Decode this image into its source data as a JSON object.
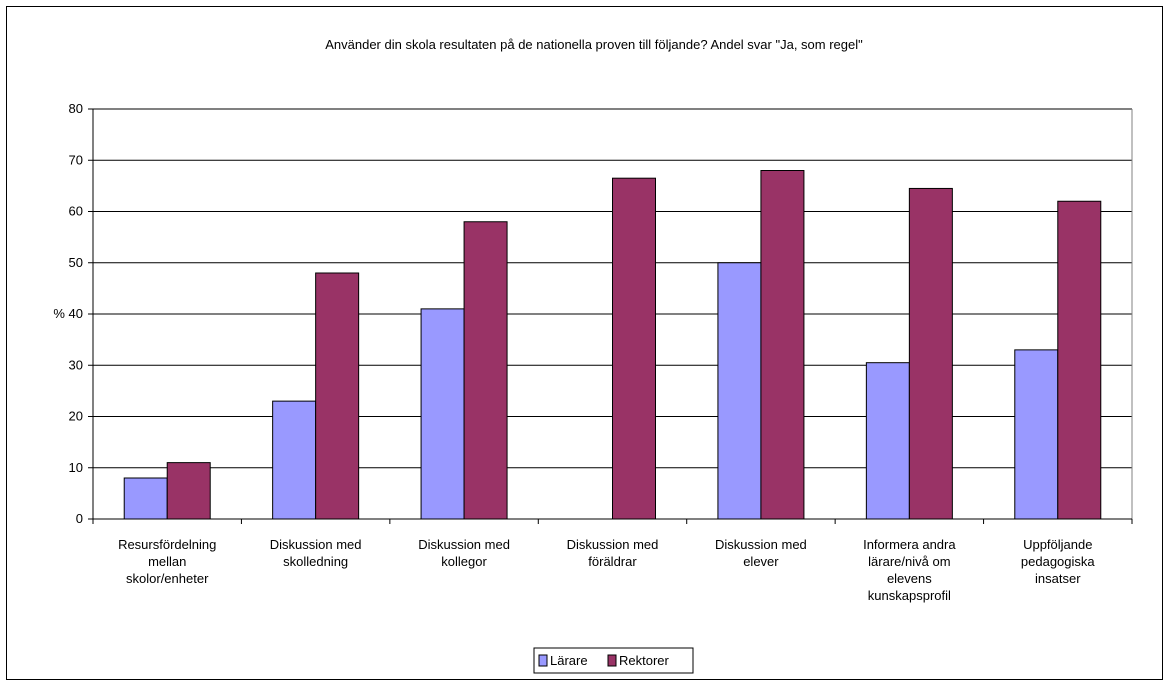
{
  "chart_data": {
    "type": "bar",
    "title": "Använder din skola resultaten på de nationella proven till följande? Andel svar \"Ja, som regel\"",
    "ylabel": "%",
    "ylim": [
      0,
      80
    ],
    "yticks": [
      0,
      10,
      20,
      30,
      40,
      50,
      60,
      70,
      80
    ],
    "grid": true,
    "legend": "bottom",
    "categories": [
      [
        "Resursfördelning",
        "mellan",
        "skolor/enheter"
      ],
      [
        "Diskussion med",
        "skolledning"
      ],
      [
        "Diskussion med",
        "kollegor"
      ],
      [
        "Diskussion med",
        "föräldrar"
      ],
      [
        "Diskussion med",
        "elever"
      ],
      [
        "Informera andra",
        "lärare/nivå om",
        "elevens",
        "kunskapsprofil"
      ],
      [
        "Uppföljande",
        "pedagogiska",
        "insatser"
      ]
    ],
    "series": [
      {
        "name": "Lärare",
        "color": "#9999ff",
        "values": [
          8,
          23,
          41,
          0,
          50,
          30.5,
          33
        ]
      },
      {
        "name": "Rektorer",
        "color": "#993366",
        "values": [
          11,
          48,
          58,
          66.5,
          68,
          64.5,
          62
        ]
      }
    ]
  }
}
